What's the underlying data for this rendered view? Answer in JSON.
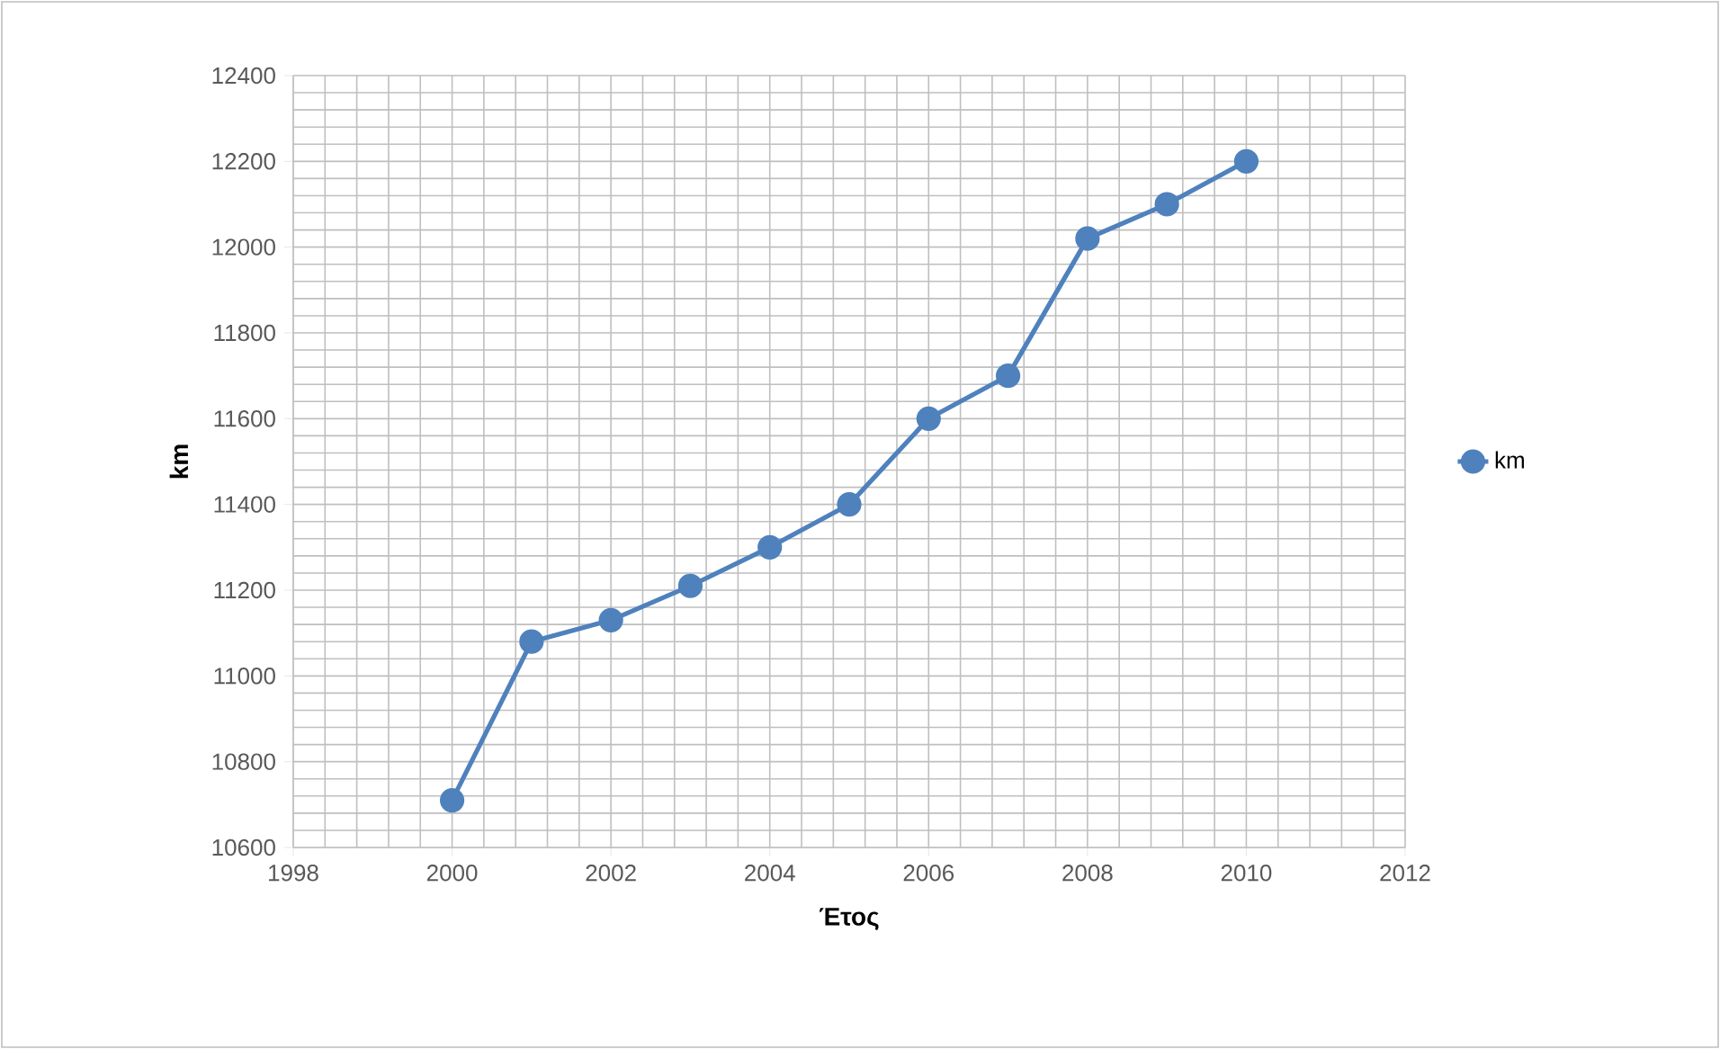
{
  "chart_data": {
    "type": "line",
    "xlabel": "Έτος",
    "ylabel": "km",
    "x": [
      2000,
      2001,
      2002,
      2003,
      2004,
      2005,
      2006,
      2007,
      2008,
      2009,
      2010
    ],
    "series": [
      {
        "name": "km",
        "color": "#4f81bd",
        "values": [
          10710,
          11080,
          11130,
          11210,
          11300,
          11400,
          11600,
          11700,
          12020,
          12100,
          12200
        ]
      }
    ],
    "xlim": [
      1998,
      2012
    ],
    "xticks": [
      1998,
      2000,
      2002,
      2004,
      2006,
      2008,
      2010,
      2012
    ],
    "ylim": [
      10600,
      12400
    ],
    "yticks": [
      10600,
      10800,
      11000,
      11200,
      11400,
      11600,
      11800,
      12000,
      12200,
      12400
    ],
    "grid": true,
    "legend": "right",
    "marker": "circle",
    "line_style": "solid"
  }
}
